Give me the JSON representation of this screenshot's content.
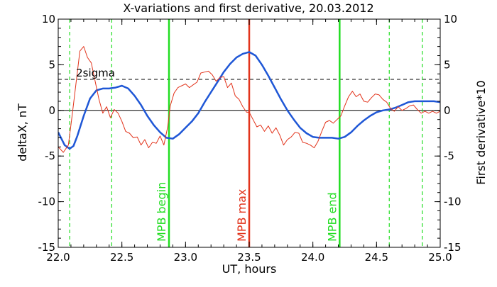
{
  "chart_data": {
    "type": "line",
    "title": "X-variations and first derivative, 20.03.2012",
    "xlabel": "UT, hours",
    "ylabel": "deltaX, nT",
    "y2label": "First derivative*10",
    "xlim": [
      22.0,
      25.0
    ],
    "ylim": [
      -15,
      10
    ],
    "y2lim": [
      -15,
      10
    ],
    "x_ticks": [
      "22.0",
      "22.5",
      "23.0",
      "23.5",
      "24.0",
      "24.5",
      "25.0"
    ],
    "y_ticks": [
      "10",
      "5",
      "0",
      "-5",
      "-10",
      "-15"
    ],
    "y2_ticks": [
      "10",
      "5",
      "0",
      "-5",
      "-10",
      "-15"
    ],
    "grid": false,
    "sigma_label": "2sigma",
    "sigma_value": 3.4,
    "colors": {
      "deltaX": "#1f57d6",
      "derivative": "#e2331b",
      "markers": "#22dd22",
      "mpb_max": "#e2331b",
      "sigma": "#000000"
    },
    "dashed_markers_x": [
      22.09,
      22.42,
      24.6,
      24.86
    ],
    "vertical_lines": [
      {
        "label": "MPB begin",
        "x": 22.87,
        "color": "#22dd22"
      },
      {
        "label": "MPB max",
        "x": 23.5,
        "color": "#e2331b"
      },
      {
        "label": "MPB end",
        "x": 24.21,
        "color": "#22dd22"
      }
    ],
    "series": [
      {
        "name": "deltaX",
        "axis": "left",
        "x": [
          22.0,
          22.05,
          22.09,
          22.12,
          22.15,
          22.2,
          22.25,
          22.3,
          22.35,
          22.4,
          22.45,
          22.5,
          22.55,
          22.6,
          22.65,
          22.7,
          22.75,
          22.8,
          22.85,
          22.9,
          22.95,
          23.0,
          23.05,
          23.1,
          23.15,
          23.2,
          23.25,
          23.3,
          23.35,
          23.4,
          23.45,
          23.5,
          23.55,
          23.6,
          23.65,
          23.7,
          23.75,
          23.8,
          23.85,
          23.9,
          23.95,
          24.0,
          24.05,
          24.1,
          24.15,
          24.2,
          24.25,
          24.3,
          24.35,
          24.4,
          24.45,
          24.5,
          24.55,
          24.6,
          24.65,
          24.7,
          24.75,
          24.8,
          24.85,
          24.9,
          24.95,
          25.0
        ],
        "y": [
          -2.4,
          -3.8,
          -4.2,
          -3.9,
          -2.8,
          -0.6,
          1.3,
          2.2,
          2.4,
          2.4,
          2.5,
          2.7,
          2.4,
          1.6,
          0.6,
          -0.6,
          -1.6,
          -2.4,
          -3.0,
          -3.1,
          -2.6,
          -1.9,
          -1.2,
          -0.3,
          0.9,
          2.0,
          3.1,
          4.2,
          5.1,
          5.8,
          6.2,
          6.4,
          6.0,
          5.0,
          3.8,
          2.5,
          1.2,
          0.0,
          -1.0,
          -1.9,
          -2.5,
          -2.9,
          -3.0,
          -3.0,
          -3.0,
          -3.1,
          -2.9,
          -2.4,
          -1.7,
          -1.1,
          -0.6,
          -0.2,
          0.0,
          0.1,
          0.3,
          0.6,
          0.9,
          1.0,
          1.0,
          1.0,
          1.0,
          0.9
        ]
      },
      {
        "name": "First derivative*10",
        "axis": "right",
        "x": [
          22.0,
          22.04,
          22.08,
          22.11,
          22.14,
          22.17,
          22.2,
          22.23,
          22.26,
          22.29,
          22.32,
          22.35,
          22.38,
          22.41,
          22.44,
          22.47,
          22.5,
          22.53,
          22.56,
          22.59,
          22.62,
          22.65,
          22.68,
          22.71,
          22.74,
          22.77,
          22.8,
          22.83,
          22.86,
          22.88,
          22.91,
          22.94,
          22.97,
          23.0,
          23.03,
          23.06,
          23.09,
          23.12,
          23.15,
          23.18,
          23.21,
          23.24,
          23.27,
          23.3,
          23.33,
          23.36,
          23.39,
          23.42,
          23.45,
          23.48,
          23.5,
          23.53,
          23.56,
          23.59,
          23.62,
          23.65,
          23.68,
          23.71,
          23.74,
          23.77,
          23.8,
          23.83,
          23.86,
          23.89,
          23.92,
          23.95,
          23.98,
          24.01,
          24.04,
          24.07,
          24.1,
          24.13,
          24.16,
          24.19,
          24.22,
          24.25,
          24.28,
          24.31,
          24.34,
          24.37,
          24.4,
          24.43,
          24.46,
          24.49,
          24.52,
          24.55,
          24.58,
          24.61,
          24.64,
          24.67,
          24.7,
          24.73,
          24.76,
          24.79,
          24.82,
          24.85,
          24.88,
          24.91,
          24.94,
          24.97,
          25.0
        ],
        "y": [
          -4.0,
          -4.6,
          -3.8,
          -0.5,
          3.0,
          6.5,
          7.0,
          5.8,
          5.2,
          3.2,
          1.2,
          -0.3,
          0.4,
          -0.8,
          0.1,
          -0.3,
          -1.2,
          -2.3,
          -2.5,
          -3.0,
          -2.9,
          -3.8,
          -3.2,
          -4.1,
          -3.5,
          -3.6,
          -2.8,
          -3.8,
          -1.8,
          0.5,
          1.9,
          2.5,
          2.7,
          2.9,
          2.5,
          2.8,
          3.1,
          4.1,
          4.2,
          4.3,
          3.9,
          3.2,
          3.6,
          3.7,
          2.5,
          3.0,
          1.6,
          1.2,
          0.4,
          -0.2,
          -0.2,
          -1.0,
          -1.8,
          -1.6,
          -2.3,
          -1.7,
          -2.5,
          -1.9,
          -2.7,
          -3.8,
          -3.2,
          -2.9,
          -2.4,
          -2.5,
          -3.5,
          -3.6,
          -3.8,
          -4.1,
          -3.4,
          -2.3,
          -1.3,
          -1.1,
          -1.4,
          -1.0,
          -0.6,
          0.5,
          1.5,
          2.1,
          1.5,
          1.8,
          1.0,
          0.9,
          1.4,
          1.8,
          1.7,
          1.2,
          0.9,
          0.2,
          -0.1,
          0.4,
          0.0,
          0.2,
          0.5,
          0.6,
          0.1,
          -0.3,
          -0.1,
          -0.3,
          -0.1,
          -0.3,
          -0.1
        ]
      }
    ]
  }
}
